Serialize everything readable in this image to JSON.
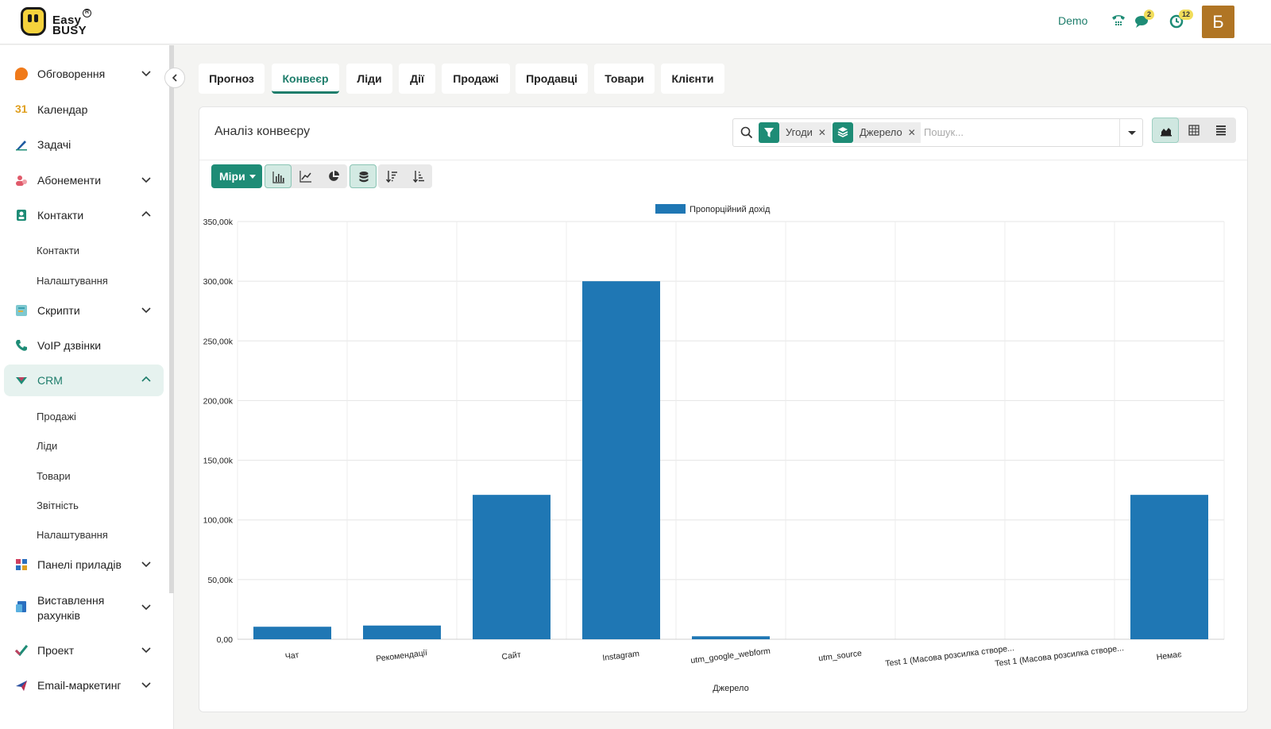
{
  "brand": {
    "line1": "Easy",
    "line2": "BUSY",
    "reg": "R"
  },
  "header": {
    "demo_label": "Demo",
    "chat_badge": "2",
    "activity_badge": "12",
    "avatar_letter": "Б"
  },
  "sidebar": {
    "items": [
      {
        "label": "Обговорення",
        "icon": "chat-bubble-icon",
        "color": "#f07a1a"
      },
      {
        "label": "Календар",
        "icon": "calendar-icon",
        "color": "#e0a020"
      },
      {
        "label": "Задачі",
        "icon": "pencil-icon",
        "color": "#1e5aa0"
      },
      {
        "label": "Абонементи",
        "icon": "people-icon",
        "color": "#e05a6a"
      },
      {
        "label": "Контакти",
        "icon": "contact-card-icon",
        "color": "#1e8c76"
      },
      {
        "label": "Скрипти",
        "icon": "script-icon",
        "color": "#3aa0b0"
      },
      {
        "label": "VoIP дзвінки",
        "icon": "phone-icon",
        "color": "#1e8c76"
      },
      {
        "label": "CRM",
        "icon": "crm-icon",
        "color": "#1e8c76"
      },
      {
        "label": "Панелі приладів",
        "icon": "dashboard-icon",
        "color": "#d04060"
      },
      {
        "label": "Виставлення рахунків",
        "icon": "invoice-icon",
        "color": "#2a70c0"
      },
      {
        "label": "Проект",
        "icon": "check-icon",
        "color": "#1e8c76"
      },
      {
        "label": "Email-маркетинг",
        "icon": "send-icon",
        "color": "#c03050"
      }
    ],
    "contacts_sub": [
      "Контакти",
      "Налаштування"
    ],
    "crm_sub": [
      "Продажі",
      "Ліди",
      "Товари",
      "Звітність",
      "Налаштування"
    ]
  },
  "tabs": [
    "Прогноз",
    "Конвеєр",
    "Ліди",
    "Дії",
    "Продажі",
    "Продавці",
    "Товари",
    "Клієнти"
  ],
  "panel": {
    "title": "Аналіз конвеєру",
    "filter_facet": "Угоди",
    "group_facet": "Джерело",
    "search_placeholder": "Пошук...",
    "measures_label": "Міри"
  },
  "colors": {
    "accent": "#1e8c76",
    "bar": "#1f77b4"
  },
  "chart_data": {
    "type": "bar",
    "categories": [
      "Чат",
      "Рекомендації",
      "Сайт",
      "Instagram",
      "utm_google_webform",
      "utm_source",
      "Test 1 (Масова розсилка створе...",
      "Test 1 (Масова розсилка створе...",
      "Немає"
    ],
    "series": [
      {
        "name": "Пропорційний дохід",
        "values": [
          10500,
          11500,
          121000,
          300000,
          2500,
          0,
          0,
          0,
          121000
        ]
      }
    ],
    "xlabel": "Джерело",
    "ylabel": "",
    "ylim": [
      0,
      350000
    ],
    "yticks": [
      "0,00",
      "50,00k",
      "100,00k",
      "150,00k",
      "200,00k",
      "250,00k",
      "300,00k",
      "350,00k"
    ],
    "grid": true,
    "legend": "top-center"
  }
}
